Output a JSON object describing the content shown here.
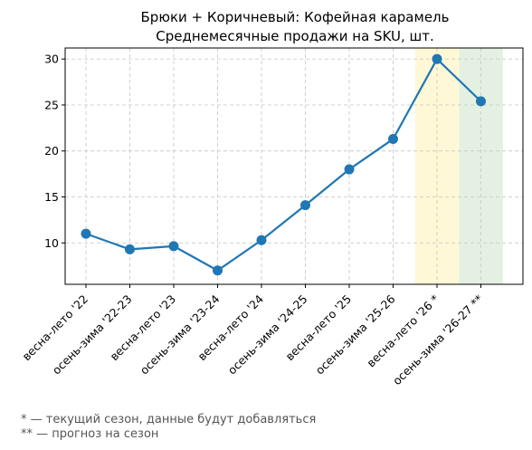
{
  "chart_data": {
    "type": "line",
    "title": "Брюки + Коричневый: Кофейная карамель",
    "subtitle": "Среднемесячные продажи на SKU, шт.",
    "xlabel": "",
    "ylabel": "",
    "categories": [
      "весна-лето '22",
      "осень-зима '22-23",
      "весна-лето '23",
      "осень-зима '23-24",
      "весна-лето '24",
      "осень-зима '24-25",
      "весна-лето '25",
      "осень-зима '25-26",
      "весна-лето '26 *",
      "осень-зима '26-27 **"
    ],
    "series": [
      {
        "values": [
          11.0,
          9.3,
          9.65,
          7.0,
          10.3,
          14.1,
          18.0,
          21.3,
          30.0,
          25.4
        ]
      }
    ],
    "ylim": [
      5.5,
      31.2
    ],
    "yticks": [
      10,
      15,
      20,
      25,
      30
    ],
    "grid": true,
    "highlights": [
      {
        "category_index": 8,
        "color": "#fff8d6",
        "meaning": "current season"
      },
      {
        "category_index": 9,
        "color": "#e4f1e2",
        "meaning": "forecast"
      }
    ],
    "line_color": "#1f77b4"
  },
  "footnotes": [
    "* — текущий сезон, данные будут добавляться",
    "** — прогноз на сезон"
  ]
}
